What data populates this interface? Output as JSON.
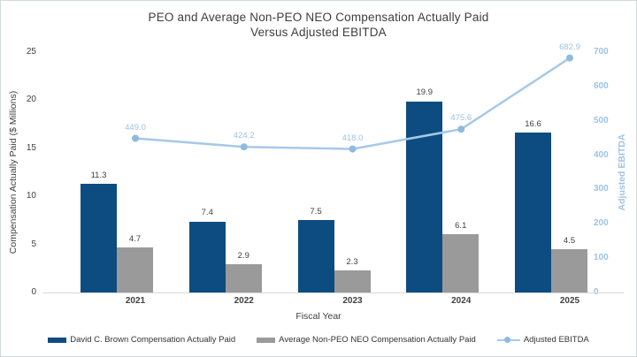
{
  "title": {
    "line1": "PEO and Average Non-PEO NEO Compensation Actually Paid",
    "line2": "Versus Adjusted EBITDA"
  },
  "chart_data": {
    "type": "combo-bar-line",
    "categories": [
      "2021",
      "2022",
      "2023",
      "2024",
      "2025"
    ],
    "series": [
      {
        "name": "David C. Brown Compensation Actually Paid",
        "type": "bar",
        "axis": "left",
        "color": "#0d4c80",
        "values": [
          11.3,
          7.4,
          7.5,
          19.9,
          16.6
        ]
      },
      {
        "name": "Average Non-PEO NEO Compensation Actually Paid",
        "type": "bar",
        "axis": "left",
        "color": "#9a9a9a",
        "values": [
          4.7,
          2.9,
          2.3,
          6.1,
          4.5
        ]
      },
      {
        "name": "Adjusted EBITDA",
        "type": "line",
        "axis": "right",
        "color": "#a6c9e8",
        "marker_color": "#8fbadf",
        "label_color": "#9dc3e6",
        "values": [
          449.0,
          424.2,
          418.0,
          475.6,
          682.9
        ]
      }
    ],
    "xlabel": "Fiscal Year",
    "ylabel_left": "Compensation Actually Paid ($ Millions)",
    "ylabel_right": "Adjusted EBITDA",
    "y_left": {
      "min": 0,
      "max": 25,
      "ticks": [
        0,
        5,
        10,
        15,
        20,
        25
      ]
    },
    "y_right": {
      "min": 0,
      "max": 700,
      "ticks": [
        0,
        100,
        200,
        300,
        400,
        500,
        600,
        700
      ]
    },
    "grid": false,
    "legend_position": "bottom",
    "data_labels": "one-decimal"
  },
  "colors": {
    "axis_text": "#404040",
    "right_axis_text": "#9dc3e6",
    "baseline": "#d9d9d9",
    "frame_border": "#d3d8d8"
  }
}
